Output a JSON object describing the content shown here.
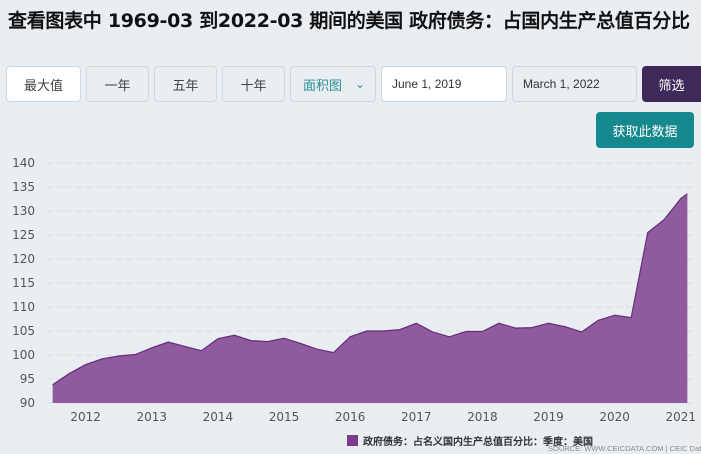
{
  "title": "查看图表中 1969-03 到2022-03 期间的美国 政府债务：占国内生产总值百分比",
  "controls": {
    "ranges": [
      "最大值",
      "一年",
      "五年",
      "十年"
    ],
    "chart_type": "面积图",
    "start_date": "June 1, 2019",
    "end_date": "March 1, 2022",
    "filter_label": "筛选",
    "get_data_label": "获取此数据"
  },
  "colors": {
    "area": "#7b3a8b",
    "filter_button": "#3e2a5a",
    "get_data_button": "#16898e"
  },
  "legend_label": "政府债务：占名义国内生产总值百分比：季度：美国",
  "source": "SOURCE: WWW.CEICDATA.COM | CEIC Data",
  "chart_data": {
    "type": "area",
    "x_ticks": [
      "2012",
      "2013",
      "2014",
      "2015",
      "2016",
      "2017",
      "2018",
      "2019",
      "2020",
      "2021"
    ],
    "y_ticks": [
      "140",
      "135",
      "130",
      "125",
      "120",
      "115",
      "110",
      "105",
      "100",
      "95",
      "90"
    ],
    "ylim": [
      90,
      140
    ],
    "xlim": [
      2011.4,
      2021.2
    ],
    "grid": true,
    "legend_position": "bottom",
    "series": [
      {
        "name": "政府债务：占名义国内生产总值百分比：季度：美国",
        "x": [
          2011.5,
          2011.75,
          2012.0,
          2012.25,
          2012.5,
          2012.75,
          2013.0,
          2013.25,
          2013.5,
          2013.75,
          2014.0,
          2014.25,
          2014.5,
          2014.75,
          2015.0,
          2015.25,
          2015.5,
          2015.75,
          2016.0,
          2016.25,
          2016.5,
          2016.75,
          2017.0,
          2017.25,
          2017.5,
          2017.75,
          2018.0,
          2018.25,
          2018.5,
          2018.75,
          2019.0,
          2019.25,
          2019.5,
          2019.75,
          2020.0,
          2020.25,
          2020.5,
          2020.75,
          2021.0,
          2021.1
        ],
        "values": [
          93.8,
          96.1,
          98.0,
          99.2,
          99.8,
          100.1,
          101.5,
          102.7,
          101.8,
          100.9,
          103.4,
          104.1,
          103.0,
          102.8,
          103.5,
          102.4,
          101.2,
          100.5,
          103.8,
          105.0,
          105.0,
          105.3,
          106.6,
          104.8,
          103.8,
          104.9,
          104.9,
          106.6,
          105.6,
          105.7,
          106.6,
          105.9,
          104.8,
          107.2,
          108.3,
          107.8,
          125.5,
          128.2,
          132.6,
          133.6
        ]
      }
    ]
  }
}
